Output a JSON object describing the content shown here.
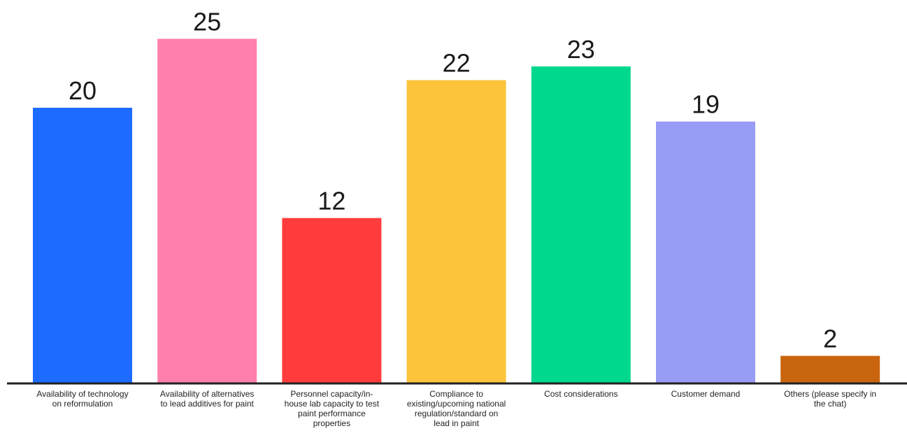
{
  "chart_data": {
    "type": "bar",
    "categories": [
      "Availability of technology on reformulation",
      "Availability of alternatives to lead additives for paint",
      "Personnel capacity/in-house lab capacity to test paint performance properties",
      "Compliance to existing/upcoming national regulation/standard on lead in paint",
      "Cost considerations",
      "Customer demand",
      "Others (please specify in the chat)"
    ],
    "values": [
      20,
      25,
      12,
      22,
      23,
      19,
      2
    ],
    "value_labels": [
      "20",
      "25",
      "12",
      "22",
      "23",
      "19",
      "2"
    ],
    "colors": [
      "#1e6bff",
      "#ff7fad",
      "#ff3b3b",
      "#fcc43a",
      "#00d98d",
      "#999cf5",
      "#c9650e"
    ],
    "ylim": [
      0,
      25
    ],
    "grid": false,
    "legend": "none",
    "data_labels": "above bars"
  }
}
